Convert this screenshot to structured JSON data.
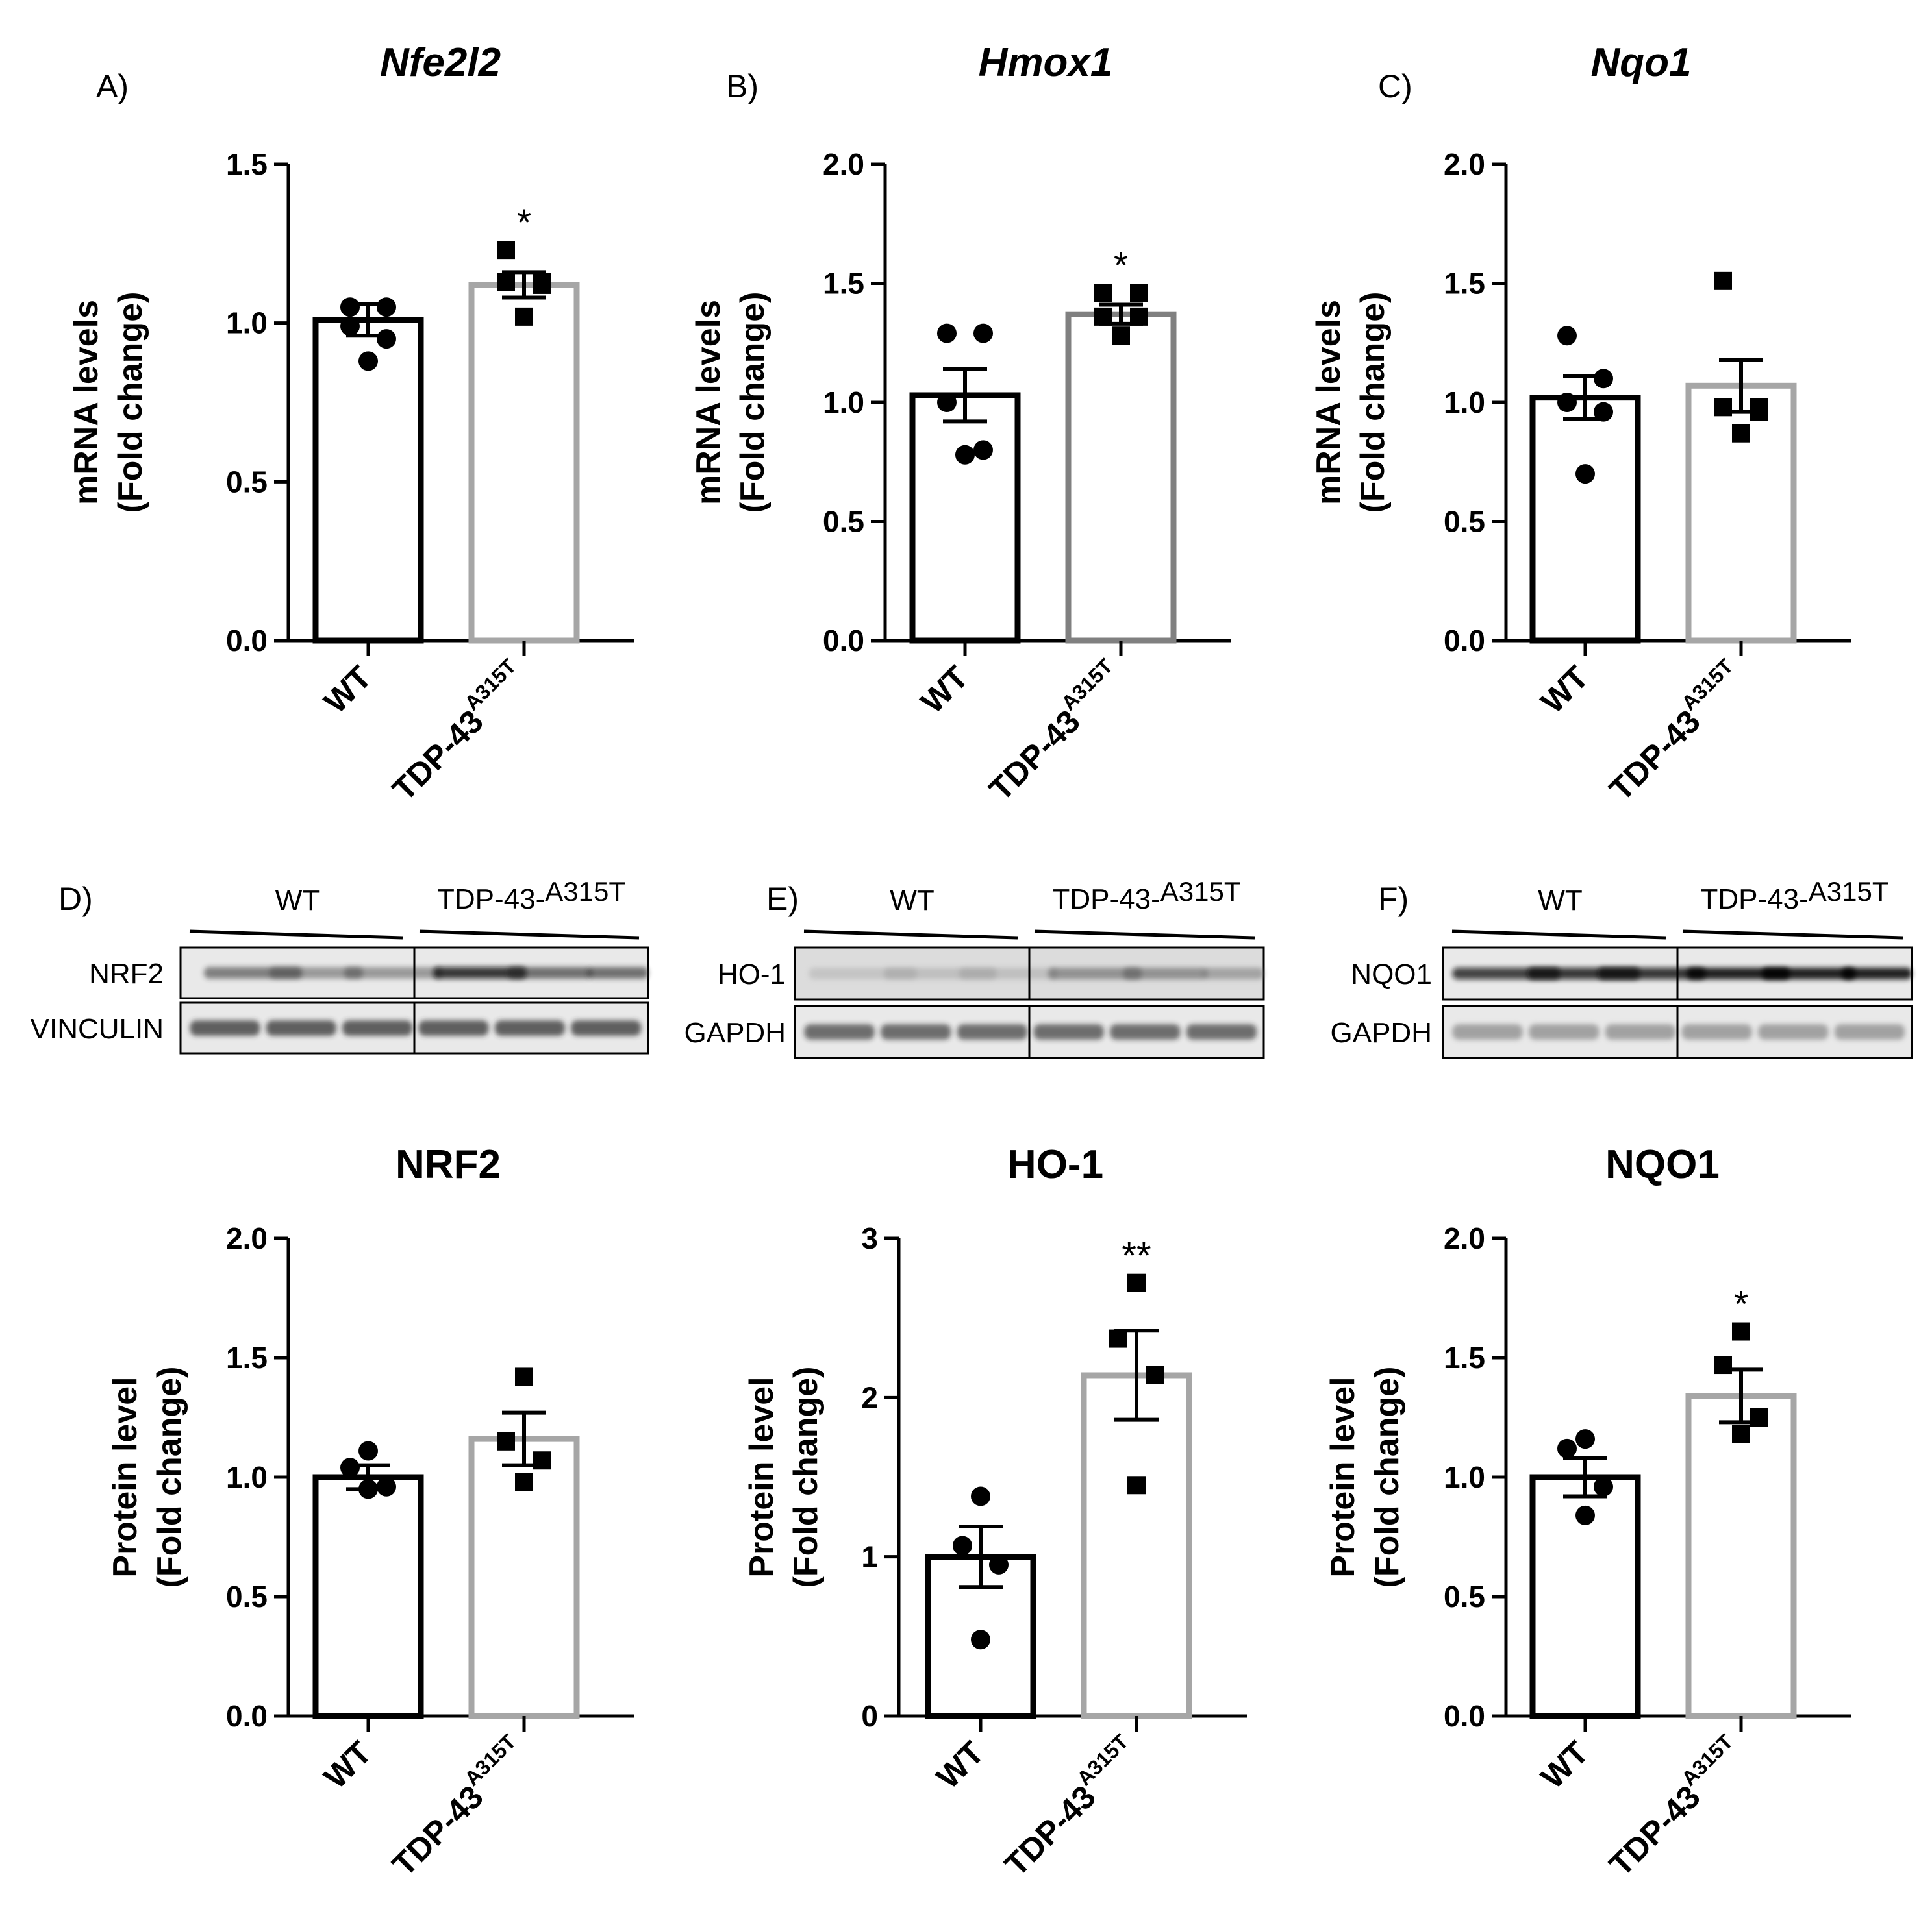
{
  "chart_data": [
    {
      "id": "A",
      "panel": "A)",
      "type": "bar",
      "title": "Nfe2l2",
      "title_italic": true,
      "ylabel": "mRNA levels",
      "ylabel2": "(Fold change)",
      "ylim": [
        0,
        1.5
      ],
      "yticks": [
        0.0,
        0.5,
        1.0,
        1.5
      ],
      "tick_decimals": 1,
      "categories": [
        "WT",
        "TDP-43"
      ],
      "category_superscripts": [
        "",
        "A315T"
      ],
      "series": [
        {
          "mean": 1.01,
          "sem": 0.05,
          "points": [
            1.05,
            1.05,
            0.99,
            0.95,
            0.88
          ],
          "marker": "circle",
          "color": "#000000"
        },
        {
          "mean": 1.12,
          "sem": 0.04,
          "points": [
            1.23,
            1.13,
            1.13,
            1.12,
            1.02
          ],
          "marker": "square",
          "color": "#a6a6a6"
        }
      ],
      "significance": [
        "",
        "*"
      ]
    },
    {
      "id": "B",
      "panel": "B)",
      "type": "bar",
      "title": "Hmox1",
      "title_italic": true,
      "ylabel": "mRNA levels",
      "ylabel2": "(Fold change)",
      "ylim": [
        0,
        2.0
      ],
      "yticks": [
        0.0,
        0.5,
        1.0,
        1.5,
        2.0
      ],
      "tick_decimals": 1,
      "categories": [
        "WT",
        "TDP-43"
      ],
      "category_superscripts": [
        "",
        "A315T"
      ],
      "series": [
        {
          "mean": 1.03,
          "sem": 0.11,
          "points": [
            1.29,
            1.29,
            1.0,
            0.8,
            0.78
          ],
          "marker": "circle",
          "color": "#000000"
        },
        {
          "mean": 1.37,
          "sem": 0.04,
          "points": [
            1.46,
            1.46,
            1.36,
            1.36,
            1.28
          ],
          "marker": "square",
          "color": "#808080"
        }
      ],
      "significance": [
        "",
        "*"
      ]
    },
    {
      "id": "C",
      "panel": "C)",
      "type": "bar",
      "title": "Nqo1",
      "title_italic": true,
      "ylabel": "mRNA levels",
      "ylabel2": "(Fold change)",
      "ylim": [
        0,
        2.0
      ],
      "yticks": [
        0.0,
        0.5,
        1.0,
        1.5,
        2.0
      ],
      "tick_decimals": 1,
      "categories": [
        "WT",
        "TDP-43"
      ],
      "category_superscripts": [
        "",
        "A315T"
      ],
      "series": [
        {
          "mean": 1.02,
          "sem": 0.09,
          "points": [
            1.28,
            1.1,
            1.0,
            0.96,
            0.7
          ],
          "marker": "circle",
          "color": "#000000"
        },
        {
          "mean": 1.07,
          "sem": 0.11,
          "points": [
            1.51,
            0.98,
            0.98,
            0.96,
            0.87
          ],
          "marker": "square",
          "color": "#a6a6a6"
        }
      ],
      "significance": [
        "",
        ""
      ]
    },
    {
      "id": "D",
      "type": "bar",
      "title": "NRF2",
      "title_italic": false,
      "ylabel": "Protein level",
      "ylabel2": "(Fold change)",
      "ylim": [
        0,
        2.0
      ],
      "yticks": [
        0.0,
        0.5,
        1.0,
        1.5,
        2.0
      ],
      "tick_decimals": 1,
      "categories": [
        "WT",
        "TDP-43"
      ],
      "category_superscripts": [
        "",
        "A315T"
      ],
      "series": [
        {
          "mean": 1.0,
          "sem": 0.05,
          "points": [
            1.11,
            1.04,
            0.96,
            0.95
          ],
          "marker": "circle",
          "color": "#000000"
        },
        {
          "mean": 1.16,
          "sem": 0.11,
          "points": [
            1.42,
            1.15,
            1.07,
            0.98
          ],
          "marker": "square",
          "color": "#a6a6a6"
        }
      ],
      "significance": [
        "",
        ""
      ]
    },
    {
      "id": "E",
      "type": "bar",
      "title": "HO-1",
      "title_italic": false,
      "ylabel": "Protein level",
      "ylabel2": "(Fold change)",
      "ylim": [
        0,
        3
      ],
      "yticks": [
        0,
        1,
        2,
        3
      ],
      "tick_decimals": 0,
      "categories": [
        "WT",
        "TDP-43"
      ],
      "category_superscripts": [
        "",
        "A315T"
      ],
      "series": [
        {
          "mean": 1.0,
          "sem": 0.19,
          "points": [
            1.38,
            1.07,
            0.95,
            0.48
          ],
          "marker": "circle",
          "color": "#000000"
        },
        {
          "mean": 2.14,
          "sem": 0.28,
          "points": [
            2.72,
            2.37,
            2.14,
            1.45
          ],
          "marker": "square",
          "color": "#a6a6a6"
        }
      ],
      "significance": [
        "",
        "**"
      ]
    },
    {
      "id": "F",
      "type": "bar",
      "title": "NQO1",
      "title_italic": false,
      "ylabel": "Protein level",
      "ylabel2": "(Fold change)",
      "ylim": [
        0,
        2.0
      ],
      "yticks": [
        0.0,
        0.5,
        1.0,
        1.5,
        2.0
      ],
      "tick_decimals": 1,
      "categories": [
        "WT",
        "TDP-43"
      ],
      "category_superscripts": [
        "",
        "A315T"
      ],
      "series": [
        {
          "mean": 1.0,
          "sem": 0.08,
          "points": [
            1.16,
            1.12,
            0.96,
            0.84
          ],
          "marker": "circle",
          "color": "#000000"
        },
        {
          "mean": 1.34,
          "sem": 0.11,
          "points": [
            1.61,
            1.47,
            1.25,
            1.18
          ],
          "marker": "square",
          "color": "#a6a6a6"
        }
      ],
      "significance": [
        "",
        "*"
      ]
    }
  ],
  "blots": [
    {
      "panel": "D)",
      "group1": "WT",
      "group2": "TDP-43-",
      "group2_sup": "A315T",
      "rows": [
        "NRF2",
        "VINCULIN"
      ]
    },
    {
      "panel": "E)",
      "group1": "WT",
      "group2": "TDP-43-",
      "group2_sup": "A315T",
      "rows": [
        "HO-1",
        "GAPDH"
      ]
    },
    {
      "panel": "F)",
      "group1": "WT",
      "group2": "TDP-43-",
      "group2_sup": "A315T",
      "rows": [
        "NQO1",
        "GAPDH"
      ]
    }
  ]
}
